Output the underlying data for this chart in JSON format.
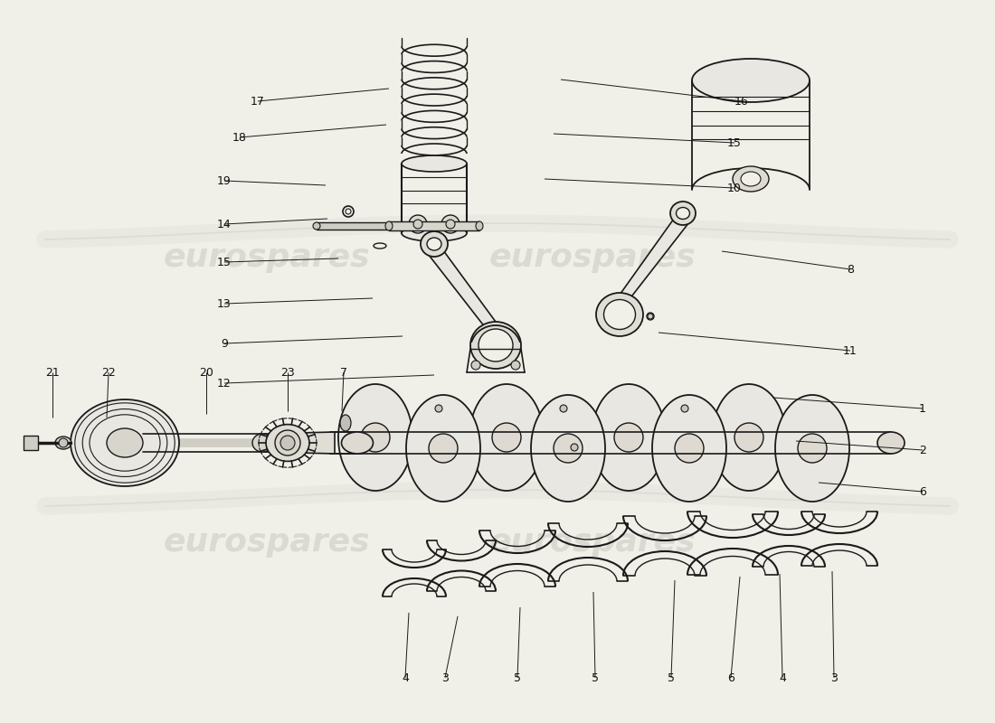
{
  "bg_color": "#f0efe8",
  "line_color": "#1a1a1a",
  "text_color": "#111111",
  "watermark_color": "#cccbc4",
  "fig_w": 11.0,
  "fig_h": 8.0,
  "dpi": 100,
  "upper_annotations": [
    [
      "17",
      285,
      112,
      430,
      98
    ],
    [
      "18",
      265,
      152,
      427,
      138
    ],
    [
      "19",
      248,
      200,
      360,
      205
    ],
    [
      "14",
      248,
      248,
      362,
      242
    ],
    [
      "15",
      248,
      290,
      374,
      286
    ],
    [
      "13",
      248,
      336,
      412,
      330
    ],
    [
      "9",
      248,
      380,
      445,
      372
    ],
    [
      "12",
      248,
      424,
      480,
      415
    ],
    [
      "16",
      820,
      112,
      620,
      88
    ],
    [
      "15",
      812,
      158,
      612,
      148
    ],
    [
      "10",
      812,
      208,
      602,
      198
    ],
    [
      "8",
      940,
      298,
      798,
      278
    ],
    [
      "11",
      940,
      388,
      728,
      368
    ]
  ],
  "lower_annotations": [
    [
      "1",
      1020,
      452,
      855,
      440
    ],
    [
      "2",
      1020,
      498,
      880,
      488
    ],
    [
      "6",
      1020,
      544,
      905,
      534
    ],
    [
      "21",
      58,
      412,
      58,
      462
    ],
    [
      "22",
      120,
      412,
      118,
      462
    ],
    [
      "20",
      228,
      412,
      228,
      458
    ],
    [
      "23",
      318,
      412,
      318,
      455
    ],
    [
      "7",
      380,
      412,
      378,
      455
    ],
    [
      "4",
      448,
      750,
      452,
      678
    ],
    [
      "3",
      492,
      750,
      506,
      682
    ],
    [
      "5",
      572,
      750,
      575,
      672
    ],
    [
      "5",
      658,
      750,
      656,
      655
    ],
    [
      "5",
      742,
      750,
      746,
      642
    ],
    [
      "6",
      808,
      750,
      818,
      638
    ],
    [
      "4",
      865,
      750,
      862,
      635
    ],
    [
      "3",
      922,
      750,
      920,
      632
    ]
  ]
}
